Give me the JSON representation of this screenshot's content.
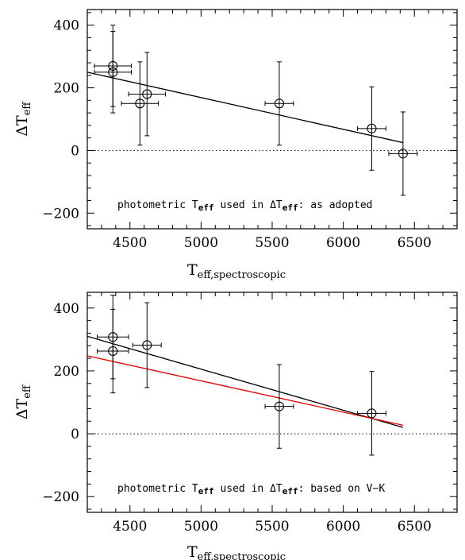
{
  "chart_data": [
    {
      "type": "scatter",
      "title": "",
      "xlim": [
        4200,
        6800
      ],
      "ylim": [
        -250,
        450
      ],
      "xticks": [
        4500,
        5000,
        5500,
        6000,
        6500
      ],
      "yticks": [
        -200,
        0,
        200,
        400
      ],
      "x_tick_labels": [
        "4500",
        "5000",
        "5500",
        "6000",
        "6500"
      ],
      "y_tick_labels": [
        "−200",
        "0",
        "200",
        "400"
      ],
      "xlabel": {
        "main": "T",
        "sub": "eff,spectroscopic"
      },
      "ylabel": {
        "main": "ΔT",
        "sub": "eff"
      },
      "annotation": {
        "part1": "photometric T",
        "sub1": "eff",
        "part2": " used in ΔT",
        "sub2": "eff",
        "part3": ": as adopted"
      },
      "zero_line": true,
      "points": [
        {
          "x": 4380,
          "y": 270,
          "xerr": 130,
          "yerr": 130
        },
        {
          "x": 4380,
          "y": 250,
          "xerr": 130,
          "yerr": 130
        },
        {
          "x": 4570,
          "y": 150,
          "xerr": 130,
          "yerr": 133
        },
        {
          "x": 4620,
          "y": 180,
          "xerr": 130,
          "yerr": 133
        },
        {
          "x": 5550,
          "y": 150,
          "xerr": 100,
          "yerr": 133
        },
        {
          "x": 6200,
          "y": 70,
          "xerr": 100,
          "yerr": 133
        },
        {
          "x": 6420,
          "y": -10,
          "xerr": 100,
          "yerr": 133
        }
      ],
      "fit_lines": [
        {
          "color": "#000000",
          "x": [
            4200,
            6420
          ],
          "y": [
            250,
            25
          ]
        }
      ]
    },
    {
      "type": "scatter",
      "title": "",
      "xlim": [
        4200,
        6800
      ],
      "ylim": [
        -250,
        450
      ],
      "xticks": [
        4500,
        5000,
        5500,
        6000,
        6500
      ],
      "yticks": [
        -200,
        0,
        200,
        400
      ],
      "x_tick_labels": [
        "4500",
        "5000",
        "5500",
        "6000",
        "6500"
      ],
      "y_tick_labels": [
        "−200",
        "0",
        "200",
        "400"
      ],
      "xlabel": {
        "main": "T",
        "sub": "eff,spectroscopic"
      },
      "ylabel": {
        "main": "ΔT",
        "sub": "eff"
      },
      "annotation": {
        "part1": "photometric T",
        "sub1": "eff",
        "part2": " used in ΔT",
        "sub2": "eff",
        "part3": ": based on V−K"
      },
      "zero_line": true,
      "points": [
        {
          "x": 4380,
          "y": 308,
          "xerr": 110,
          "yerr": 133
        },
        {
          "x": 4380,
          "y": 263,
          "xerr": 110,
          "yerr": 133
        },
        {
          "x": 4620,
          "y": 282,
          "xerr": 100,
          "yerr": 135
        },
        {
          "x": 5550,
          "y": 87,
          "xerr": 100,
          "yerr": 133
        },
        {
          "x": 6200,
          "y": 65,
          "xerr": 100,
          "yerr": 133
        }
      ],
      "fit_lines": [
        {
          "color": "#000000",
          "x": [
            4200,
            6420
          ],
          "y": [
            310,
            20
          ]
        },
        {
          "color": "#e00000",
          "x": [
            4200,
            6420
          ],
          "y": [
            248,
            27
          ]
        }
      ]
    }
  ]
}
